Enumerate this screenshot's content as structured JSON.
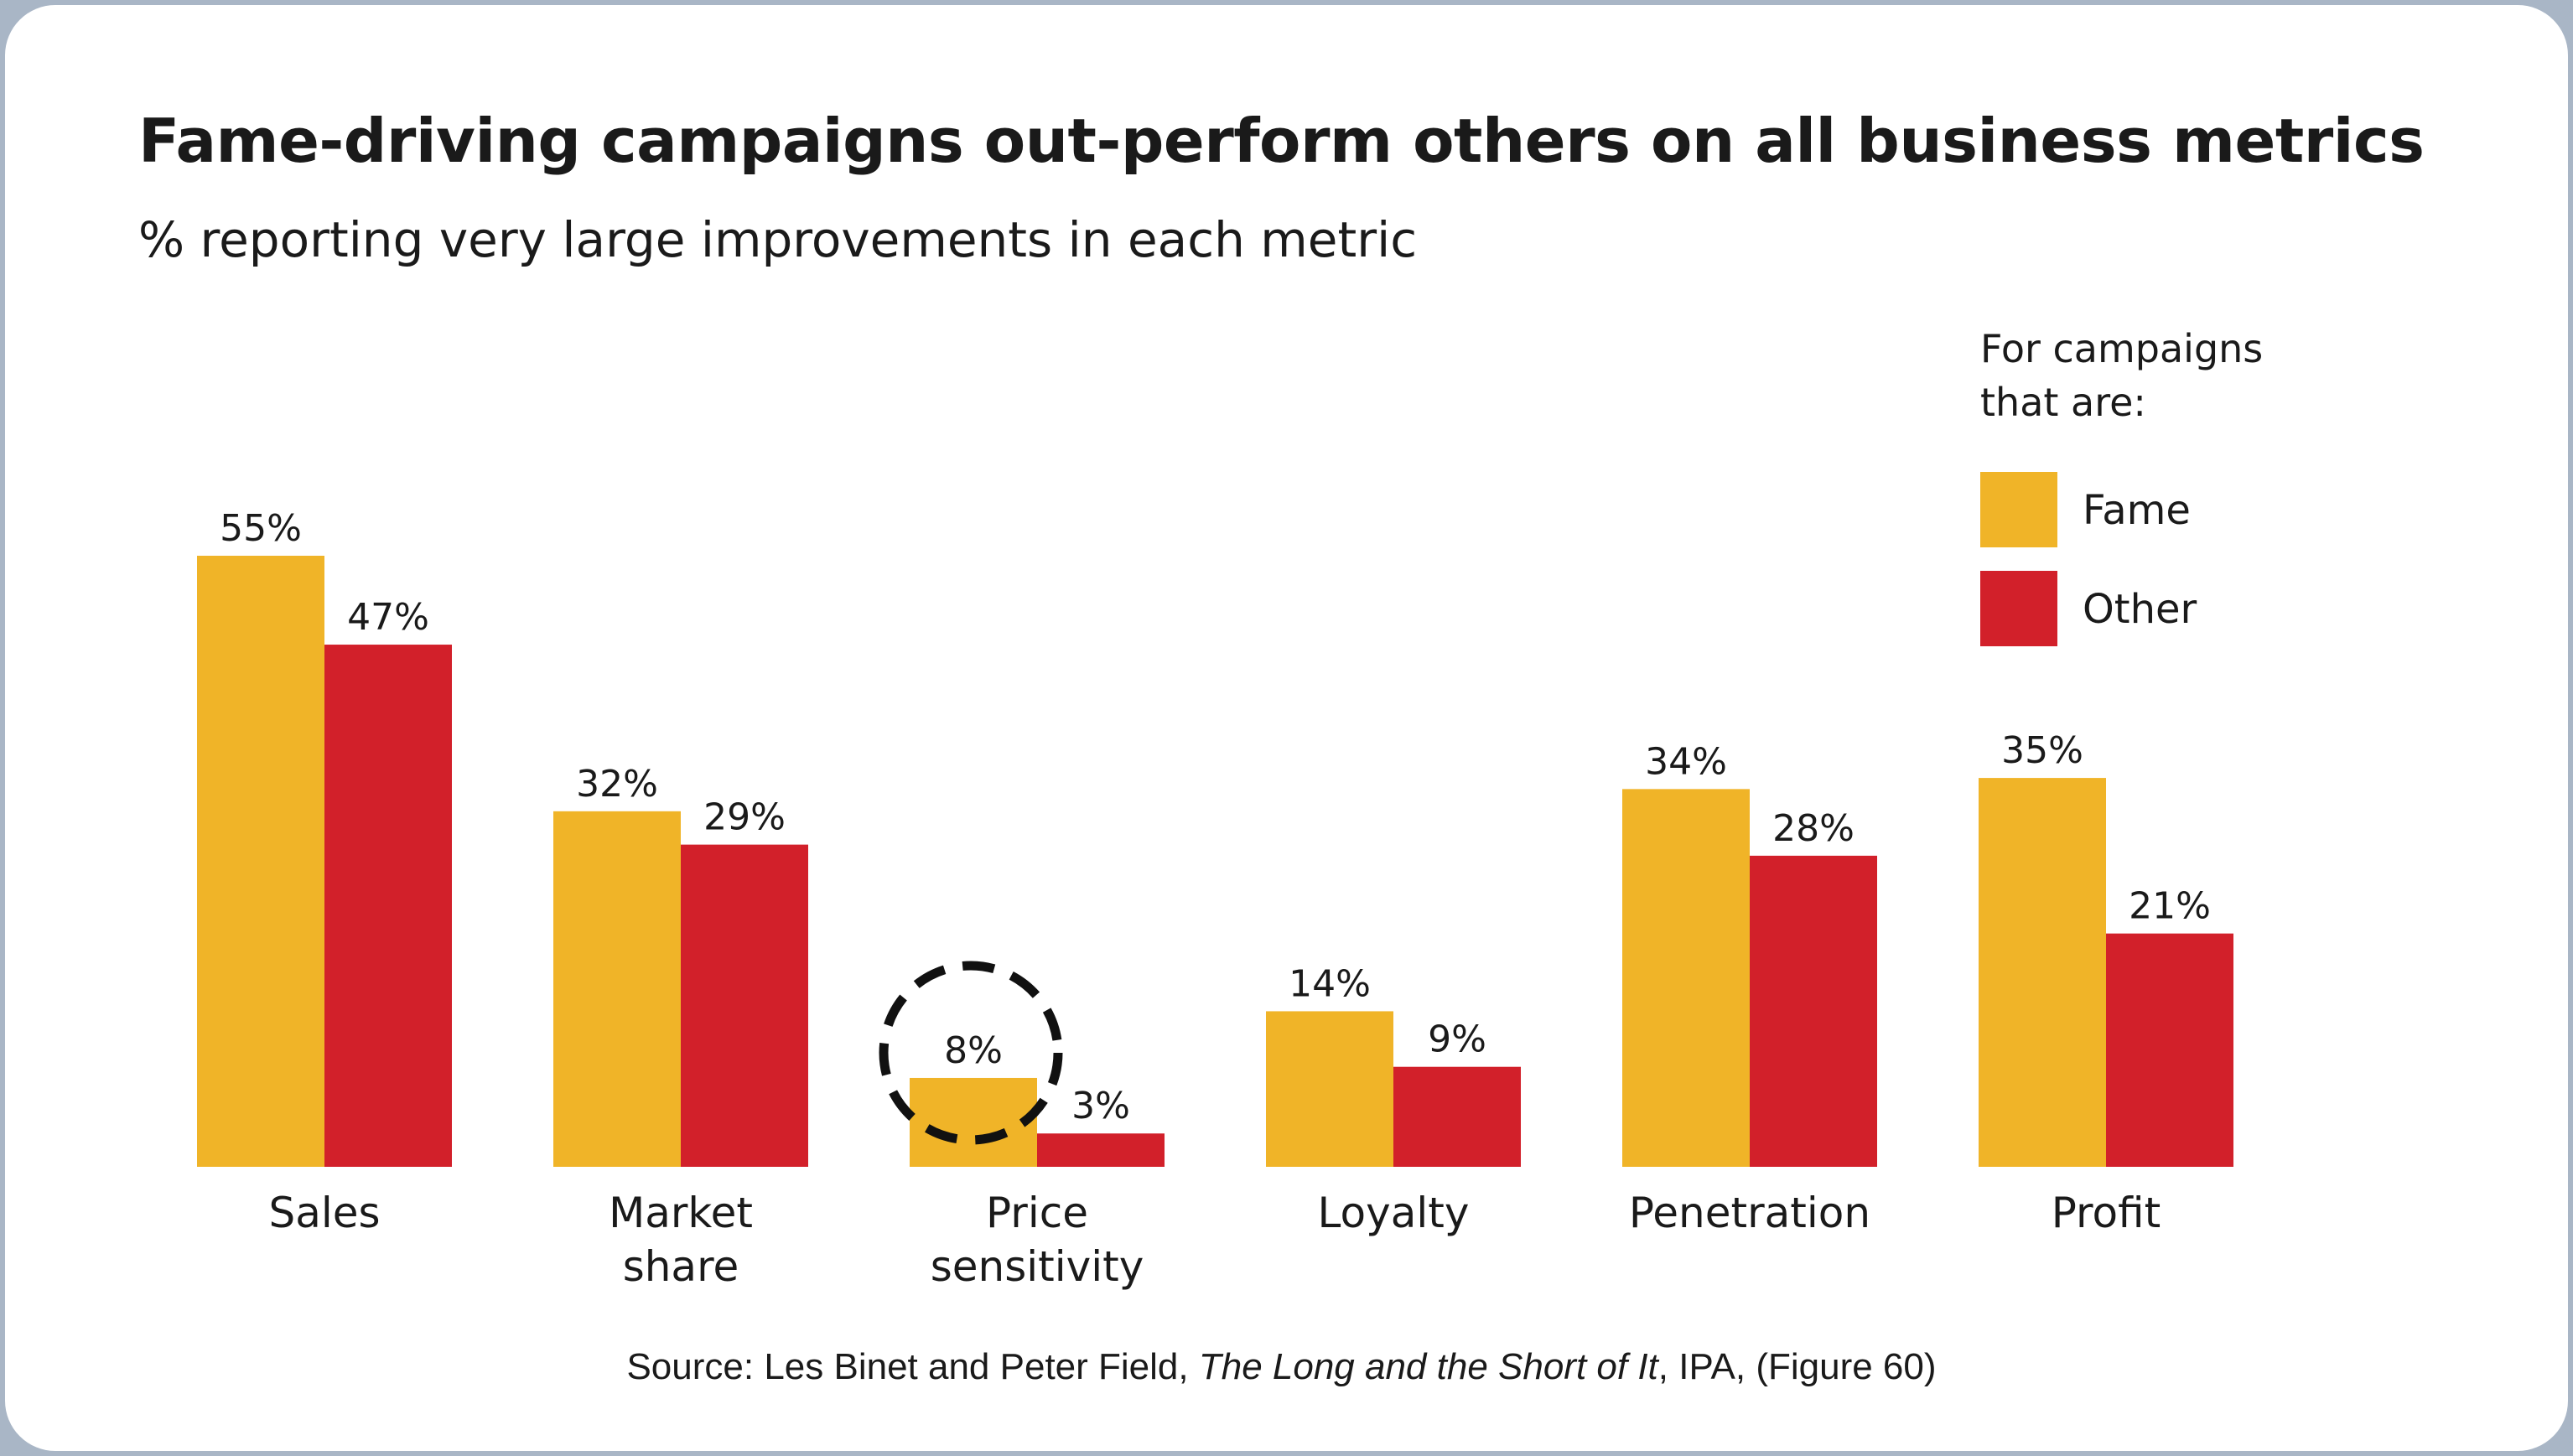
{
  "chart_data": {
    "type": "bar",
    "title": "Fame-driving campaigns out-perform others on all business metrics",
    "subtitle": "% reporting very large improvements in each metric",
    "categories": [
      [
        "Sales"
      ],
      [
        "Market",
        "share"
      ],
      [
        "Price",
        "sensitivity"
      ],
      [
        "Loyalty"
      ],
      [
        "Penetration"
      ],
      [
        "Profit"
      ]
    ],
    "series": [
      {
        "name": "Fame",
        "values": [
          55,
          32,
          8,
          14,
          34,
          35
        ],
        "labels": [
          "55%",
          "32%",
          "8%",
          "14%",
          "34%",
          "35%"
        ],
        "color": "#f0b428"
      },
      {
        "name": "Other",
        "values": [
          47,
          29,
          3,
          9,
          28,
          21
        ],
        "labels": [
          "47%",
          "29%",
          "3%",
          "9%",
          "28%",
          "21%"
        ],
        "color": "#d2202a"
      }
    ],
    "legend": {
      "title": [
        "For campaigns",
        "that are:"
      ],
      "placement": "top-right"
    },
    "highlight": {
      "category_index": 2,
      "series_index": 0,
      "style": "dashed-circle"
    },
    "ylim": [
      0,
      55
    ],
    "grid": false,
    "xlabel": "",
    "ylabel": ""
  },
  "source": {
    "prefix": "Source: Les Binet and Peter Field, ",
    "work": "The Long and the Short of It",
    "suffix": ", IPA, (Figure 60)"
  }
}
